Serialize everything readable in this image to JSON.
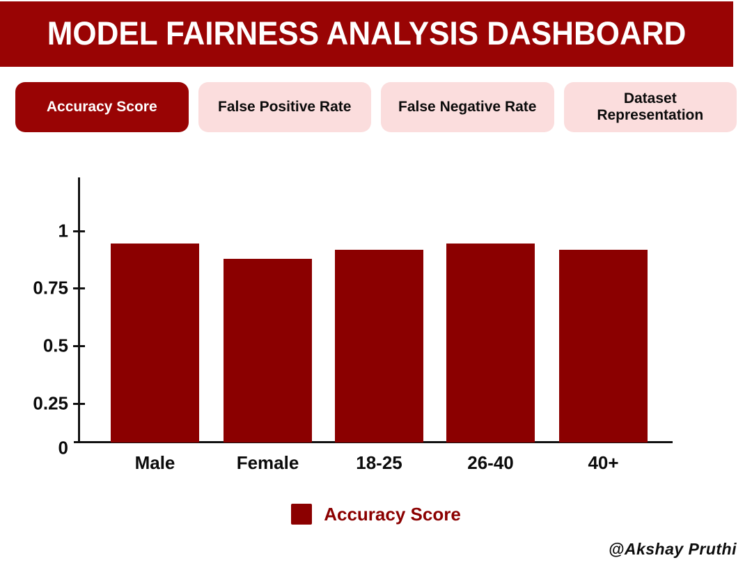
{
  "header": {
    "title": "MODEL FAIRNESS ANALYSIS DASHBOARD"
  },
  "tabs": [
    {
      "label": "Accuracy Score",
      "active": true
    },
    {
      "label": "False Positive Rate",
      "active": false
    },
    {
      "label": "False Negative Rate",
      "active": false
    },
    {
      "label": "Dataset Representation",
      "active": false
    }
  ],
  "chart_data": {
    "type": "bar",
    "title": "",
    "categories": [
      "Male",
      "Female",
      "18-25",
      "26-40",
      "40+"
    ],
    "series": [
      {
        "name": "Accuracy Score",
        "values": [
          0.94,
          0.87,
          0.91,
          0.94,
          0.91
        ]
      }
    ],
    "xlabel": "",
    "ylabel": "",
    "ylim": [
      0,
      1
    ],
    "yticks": [
      0,
      0.25,
      0.5,
      0.75,
      1
    ],
    "ytick_labels": [
      "0",
      "0.25",
      "0.5",
      "0.75",
      "1"
    ],
    "grid": false,
    "legend_position": "bottom",
    "bar_color": "#8B0000"
  },
  "legend": {
    "label": "Accuracy Score",
    "color": "#8B0000",
    "text_color": "#8B0000"
  },
  "attribution": "@Akshay Pruthi",
  "colors": {
    "header_bg": "#990404",
    "header_text": "#ffffff",
    "tab_active_bg": "#990404",
    "tab_active_text": "#ffffff",
    "tab_inactive_bg": "#FBDDDD",
    "tab_inactive_text": "#0b0b0b",
    "bar": "#8B0000",
    "axis": "#111111"
  }
}
